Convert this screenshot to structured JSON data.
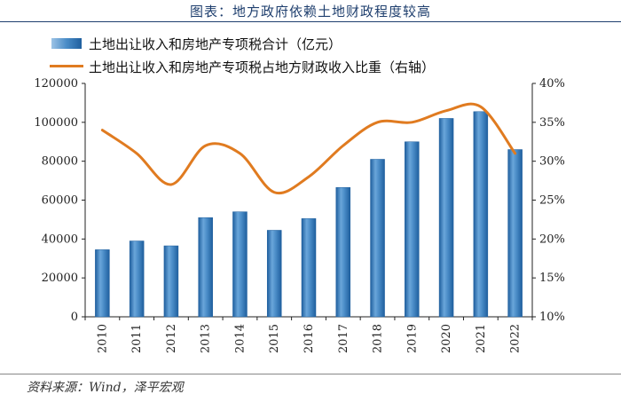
{
  "title": "图表：地方政府依赖土地财政程度较高",
  "source": "资料来源：Wind，泽平宏观",
  "legend": {
    "bar_label": "土地出让收入和房地产专项税合计（亿元）",
    "line_label": "土地出让收入和房地产专项税占地方财政收入比重（右轴）"
  },
  "colors": {
    "bar": "#3f83c4",
    "bar_edge": "#1f5f9e",
    "line": "#e07b20",
    "title": "#1f3f6e"
  },
  "chart_data": {
    "type": "bar",
    "title": "地方政府依赖土地财政程度较高",
    "categories": [
      "2010",
      "2011",
      "2012",
      "2013",
      "2014",
      "2015",
      "2016",
      "2017",
      "2018",
      "2019",
      "2020",
      "2021",
      "2022"
    ],
    "series": [
      {
        "name": "土地出让收入和房地产专项税合计（亿元）",
        "type": "bar",
        "axis": "left",
        "values": [
          34500,
          39000,
          36500,
          51000,
          54000,
          44500,
          50500,
          66500,
          81000,
          90000,
          102000,
          105500,
          86000
        ]
      },
      {
        "name": "土地出让收入和房地产专项税占地方财政收入比重（右轴）",
        "type": "line",
        "axis": "right",
        "values": [
          34,
          31,
          27,
          32,
          31,
          26,
          28,
          32,
          35,
          35,
          36.5,
          37,
          31
        ]
      }
    ],
    "yleft": {
      "min": 0,
      "max": 120000,
      "ticks": [
        "0",
        "20000",
        "40000",
        "60000",
        "80000",
        "100000",
        "120000"
      ]
    },
    "yright": {
      "min": 10,
      "max": 40,
      "ticks": [
        "10%",
        "15%",
        "20%",
        "25%",
        "30%",
        "35%",
        "40%"
      ]
    },
    "legend_position": "top-left",
    "grid": false
  }
}
